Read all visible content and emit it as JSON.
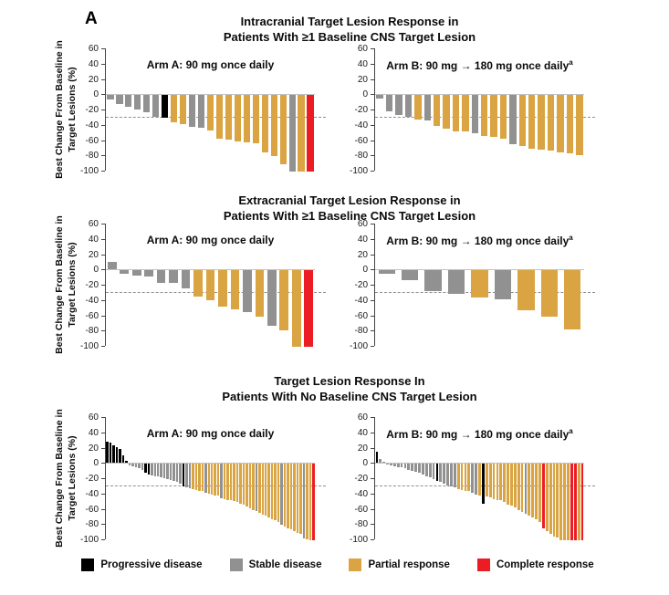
{
  "figure_label": "A",
  "legend": {
    "items": [
      {
        "label": "Progressive disease",
        "color_key": "PD"
      },
      {
        "label": "Stable disease",
        "color_key": "SD"
      },
      {
        "label": "Partial response",
        "color_key": "PR"
      },
      {
        "label": "Complete response",
        "color_key": "CR"
      }
    ]
  },
  "chart_data": {
    "type": "bar",
    "subtype": "waterfall",
    "ylabel_line1": "Best Change From Baseline in",
    "ylabel_line2": "Target Lesions (%)",
    "yticks": [
      60,
      40,
      20,
      0,
      -20,
      -40,
      -60,
      -80,
      -100
    ],
    "ylim": [
      -100,
      60
    ],
    "dashed_reference_line": -30,
    "grid": false,
    "colors": {
      "PD": "#000000",
      "SD": "#919191",
      "PR": "#D9A441",
      "CR": "#EC1C24"
    },
    "color_meaning": {
      "PD": "Progressive disease",
      "SD": "Stable disease",
      "PR": "Partial response",
      "CR": "Complete response"
    },
    "sections": [
      {
        "title_line1": "Intracranial Target Lesion Response in",
        "title_line2": "Patients With ≥1 Baseline CNS Target Lesion",
        "panels": [
          {
            "arm_label": "Arm A: 90 mg once daily",
            "arm_superscript": "",
            "values": [
              -6,
              -12,
              -15,
              -19,
              -22,
              -28,
              -30,
              -36,
              -38,
              -41,
              -43,
              -46,
              -57,
              -58,
              -60,
              -62,
              -63,
              -75,
              -80,
              -90,
              -100,
              -100,
              -100
            ],
            "responses": [
              "SD",
              "SD",
              "SD",
              "SD",
              "SD",
              "SD",
              "PD",
              "PR",
              "PR",
              "SD",
              "SD",
              "PR",
              "PR",
              "PR",
              "PR",
              "PR",
              "PR",
              "PR",
              "PR",
              "PR",
              "SD",
              "PR",
              "CR"
            ]
          },
          {
            "arm_label": "Arm B: 90 mg → 180 mg once daily",
            "arm_superscript": "a",
            "values": [
              -5,
              -21,
              -26,
              -28,
              -32,
              -33,
              -40,
              -44,
              -47,
              -48,
              -50,
              -53,
              -55,
              -57,
              -64,
              -66,
              -70,
              -71,
              -73,
              -75,
              -76,
              -78
            ],
            "responses": [
              "SD",
              "SD",
              "SD",
              "SD",
              "PR",
              "SD",
              "PR",
              "PR",
              "PR",
              "PR",
              "SD",
              "PR",
              "PR",
              "PR",
              "SD",
              "PR",
              "PR",
              "PR",
              "PR",
              "PR",
              "PR",
              "PR"
            ]
          }
        ]
      },
      {
        "title_line1": "Extracranial Target Lesion Response in",
        "title_line2": "Patients With ≥1 Baseline CNS Target Lesion",
        "panels": [
          {
            "arm_label": "Arm A: 90 mg once daily",
            "arm_superscript": "",
            "values": [
              10,
              -4,
              -7,
              -8,
              -16,
              -17,
              -24,
              -34,
              -39,
              -48,
              -51,
              -55,
              -61,
              -72,
              -78,
              -100,
              -100
            ],
            "responses": [
              "SD",
              "SD",
              "SD",
              "SD",
              "SD",
              "SD",
              "SD",
              "PR",
              "PR",
              "PR",
              "PR",
              "SD",
              "PR",
              "SD",
              "PR",
              "PR",
              "CR"
            ]
          },
          {
            "arm_label": "Arm B: 90 mg → 180 mg once daily",
            "arm_superscript": "a",
            "values": [
              -5,
              -13,
              -27,
              -31,
              -35,
              -38,
              -52,
              -61,
              -77
            ],
            "responses": [
              "SD",
              "SD",
              "SD",
              "SD",
              "PR",
              "SD",
              "PR",
              "PR",
              "PR"
            ]
          }
        ]
      },
      {
        "title_line1": "Target Lesion Response In",
        "title_line2": "Patients With No Baseline CNS Target Lesion",
        "panels": [
          {
            "arm_label": "Arm A: 90 mg once daily",
            "arm_superscript": "",
            "values": [
              28,
              26,
              23,
              21,
              18,
              10,
              3,
              -2,
              -3,
              -5,
              -6,
              -8,
              -12,
              -14,
              -15,
              -16,
              -17,
              -18,
              -19,
              -20,
              -21,
              -22,
              -24,
              -26,
              -30,
              -31,
              -32,
              -33,
              -34,
              -35,
              -36,
              -38,
              -39,
              -40,
              -41,
              -42,
              -45,
              -46,
              -47,
              -48,
              -49,
              -50,
              -52,
              -54,
              -56,
              -58,
              -60,
              -62,
              -64,
              -66,
              -68,
              -70,
              -72,
              -74,
              -76,
              -80,
              -82,
              -84,
              -86,
              -88,
              -90,
              -92,
              -98,
              -99,
              -100,
              -100
            ],
            "responses": [
              "PD",
              "PD",
              "PD",
              "PD",
              "PD",
              "PD",
              "PD",
              "SD",
              "SD",
              "SD",
              "SD",
              "SD",
              "PD",
              "PD",
              "SD",
              "SD",
              "SD",
              "SD",
              "SD",
              "SD",
              "SD",
              "SD",
              "SD",
              "SD",
              "PD",
              "SD",
              "SD",
              "PR",
              "PR",
              "PR",
              "PR",
              "SD",
              "PR",
              "PR",
              "PR",
              "PR",
              "SD",
              "PR",
              "PR",
              "PR",
              "PR",
              "PR",
              "PR",
              "PR",
              "PR",
              "PR",
              "PR",
              "SD",
              "PR",
              "PR",
              "PR",
              "PR",
              "PR",
              "PR",
              "PR",
              "SD",
              "PR",
              "PR",
              "PR",
              "PR",
              "PR",
              "PR",
              "SD",
              "PR",
              "PR",
              "CR"
            ]
          },
          {
            "arm_label": "Arm B: 90 mg → 180 mg once daily",
            "arm_superscript": "a",
            "values": [
              15,
              5,
              2,
              -1,
              -2,
              -3,
              -4,
              -5,
              -6,
              -8,
              -9,
              -10,
              -12,
              -14,
              -16,
              -18,
              -20,
              -22,
              -24,
              -26,
              -28,
              -30,
              -31,
              -33,
              -34,
              -35,
              -36,
              -38,
              -40,
              -41,
              -52,
              -43,
              -44,
              -46,
              -47,
              -48,
              -50,
              -53,
              -55,
              -57,
              -60,
              -63,
              -65,
              -68,
              -70,
              -73,
              -76,
              -85,
              -88,
              -92,
              -95,
              -97,
              -100,
              -100,
              -100,
              -100,
              -100,
              -100,
              -100
            ],
            "responses": [
              "PD",
              "SD",
              "SD",
              "SD",
              "SD",
              "SD",
              "SD",
              "SD",
              "SD",
              "SD",
              "SD",
              "SD",
              "SD",
              "SD",
              "SD",
              "SD",
              "SD",
              "PD",
              "SD",
              "SD",
              "SD",
              "SD",
              "SD",
              "PR",
              "PR",
              "PR",
              "PR",
              "SD",
              "SD",
              "PR",
              "PD",
              "PR",
              "PR",
              "PR",
              "PR",
              "PR",
              "PR",
              "PR",
              "PR",
              "PR",
              "PR",
              "PR",
              "SD",
              "PR",
              "PR",
              "PR",
              "PR",
              "CR",
              "PR",
              "PR",
              "PR",
              "PR",
              "PR",
              "PR",
              "PR",
              "CR",
              "CR",
              "PR",
              "CR"
            ]
          }
        ]
      }
    ]
  }
}
